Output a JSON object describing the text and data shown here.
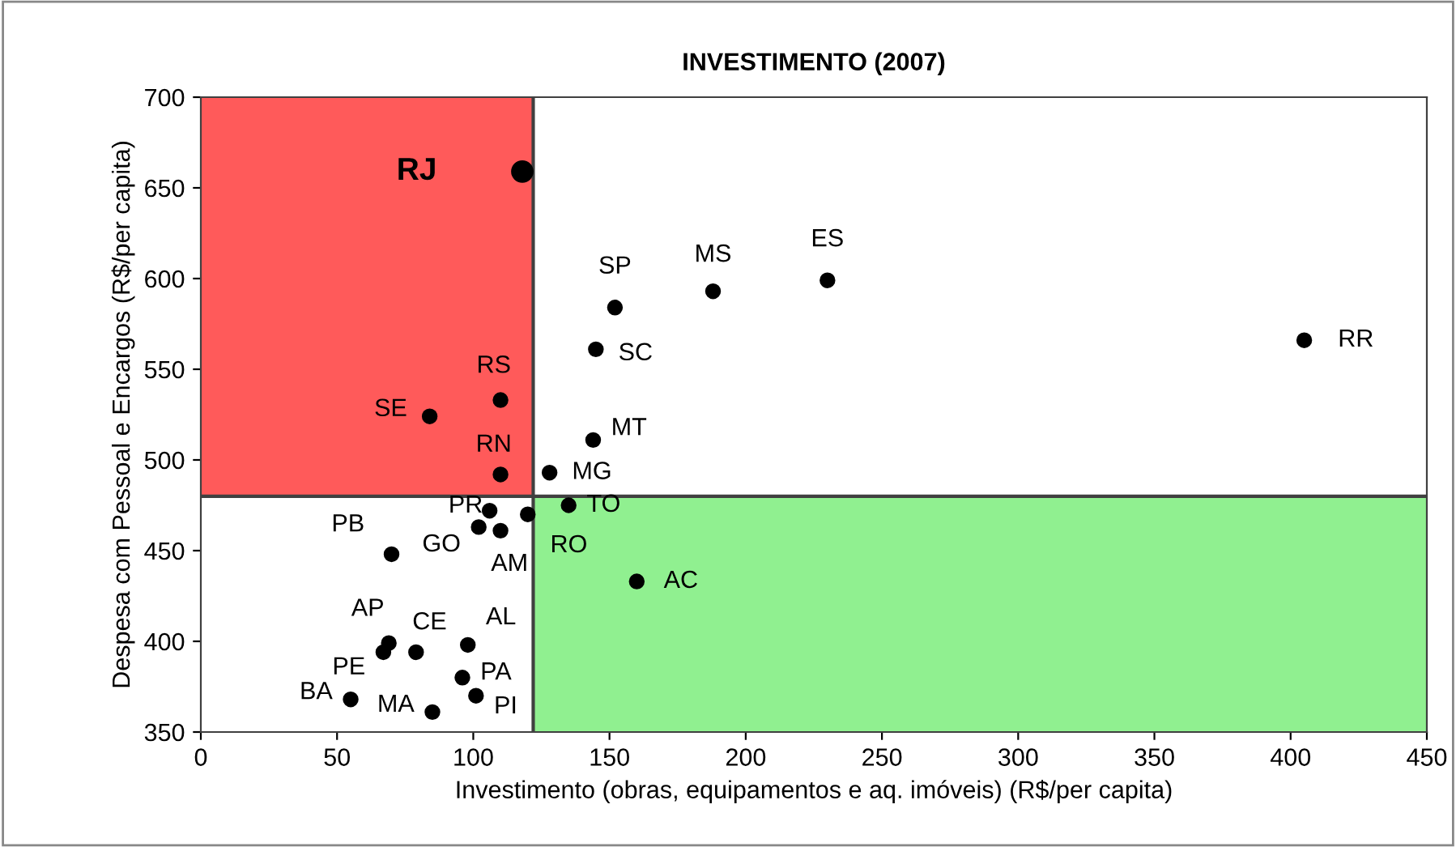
{
  "chart_data": {
    "type": "scatter",
    "title": "INVESTIMENTO (2007)",
    "xlabel": "Investimento (obras, equipamentos e aq. imóveis) (R$/per capita)",
    "ylabel": "Despesa com Pessoal e Encargos (R$/per capita)",
    "xlim": [
      0,
      450
    ],
    "xticks": [
      0,
      50,
      100,
      150,
      200,
      250,
      300,
      350,
      400,
      450
    ],
    "ylim": [
      350,
      700
    ],
    "yticks": [
      350,
      400,
      450,
      500,
      550,
      600,
      650,
      700
    ],
    "grid": false,
    "legend": false,
    "marker": "circle",
    "series": [
      {
        "color": "#000000",
        "x": [
          118
        ],
        "values": [
          659
        ]
      },
      {
        "color": "#000000",
        "x": [
          152,
          188,
          230,
          145,
          110,
          84,
          144,
          405,
          110,
          128,
          106,
          120,
          135,
          102,
          110,
          70,
          160,
          69,
          67,
          79,
          98,
          96,
          101,
          55,
          85
        ],
        "values": [
          584,
          593,
          599,
          561,
          533,
          524,
          511,
          566,
          492,
          493,
          472,
          470,
          475,
          463,
          461,
          448,
          433,
          399,
          394,
          394,
          398,
          380,
          370,
          368,
          361
        ]
      }
    ],
    "ref_lines": [
      {
        "axis": "x",
        "value": 122,
        "color": "#404040"
      },
      {
        "axis": "y",
        "value": 480,
        "color": "#404040"
      }
    ],
    "bands": [
      {
        "axis": "x",
        "from": 0,
        "to": 122,
        "color": "#ff5a5a"
      },
      {
        "axis": "y",
        "from": 350,
        "to": 480,
        "color": "#90f090"
      }
    ],
    "annotations": [
      {
        "text": "RJ",
        "x": 118,
        "y": 659
      },
      {
        "text": "SP",
        "x": 152,
        "y": 584
      },
      {
        "text": "MS",
        "x": 188,
        "y": 593
      },
      {
        "text": "ES",
        "x": 230,
        "y": 599
      },
      {
        "text": "SC",
        "x": 145,
        "y": 561
      },
      {
        "text": "RS",
        "x": 110,
        "y": 533
      },
      {
        "text": "SE",
        "x": 84,
        "y": 524
      },
      {
        "text": "MT",
        "x": 144,
        "y": 511
      },
      {
        "text": "RR",
        "x": 405,
        "y": 566
      },
      {
        "text": "RN",
        "x": 110,
        "y": 492
      },
      {
        "text": "MG",
        "x": 128,
        "y": 493
      },
      {
        "text": "PR",
        "x": 106,
        "y": 472
      },
      {
        "text": "RO",
        "x": 120,
        "y": 470
      },
      {
        "text": "TO",
        "x": 135,
        "y": 475
      },
      {
        "text": "GO",
        "x": 102,
        "y": 463
      },
      {
        "text": "AM",
        "x": 110,
        "y": 461
      },
      {
        "text": "PB",
        "x": 70,
        "y": 448
      },
      {
        "text": "AC",
        "x": 160,
        "y": 433
      },
      {
        "text": "AP",
        "x": 69,
        "y": 399
      },
      {
        "text": "PE",
        "x": 67,
        "y": 394
      },
      {
        "text": "CE",
        "x": 79,
        "y": 394
      },
      {
        "text": "AL",
        "x": 98,
        "y": 398
      },
      {
        "text": "PA",
        "x": 96,
        "y": 380
      },
      {
        "text": "PI",
        "x": 101,
        "y": 370
      },
      {
        "text": "BA",
        "x": 55,
        "y": 368
      },
      {
        "text": "MA",
        "x": 85,
        "y": 361
      }
    ]
  }
}
